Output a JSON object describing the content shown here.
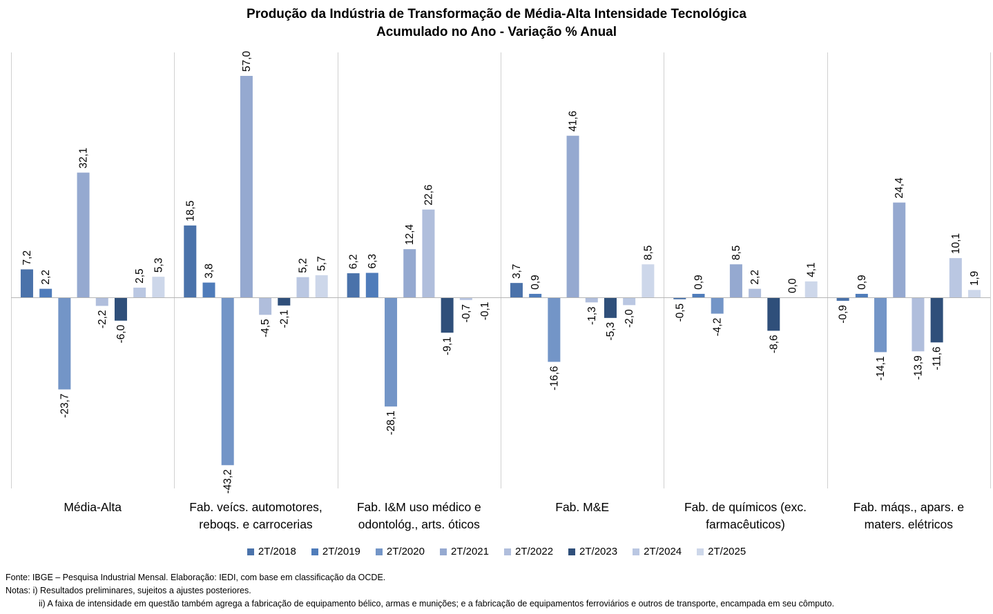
{
  "chart_data": {
    "type": "bar",
    "title": "Produção da Indústria de Transformação de Média-Alta Intensidade Tecnológica",
    "subtitle": "Acumulado no Ano - Variação % Anual",
    "categories": [
      [
        "Média-Alta"
      ],
      [
        "Fab. veícs. automotores,",
        "reboqs. e carrocerias"
      ],
      [
        "Fab. I&M uso médico e",
        "odontológ., arts. óticos"
      ],
      [
        "Fab. M&E"
      ],
      [
        "Fab. de químicos (exc.",
        "farmacêuticos)"
      ],
      [
        "Fab. máqs., apars. e",
        "maters. elétricos"
      ]
    ],
    "series": [
      {
        "name": "2T/2018",
        "color": "#4a72aa",
        "values": [
          7.2,
          18.5,
          6.2,
          3.7,
          -0.5,
          -0.9
        ]
      },
      {
        "name": "2T/2019",
        "color": "#4f7cba",
        "values": [
          2.2,
          3.8,
          6.3,
          0.9,
          0.9,
          0.9
        ]
      },
      {
        "name": "2T/2020",
        "color": "#7395c7",
        "values": [
          -23.7,
          -43.2,
          -28.1,
          -16.6,
          -4.2,
          -14.1
        ]
      },
      {
        "name": "2T/2021",
        "color": "#95a9d0",
        "values": [
          32.1,
          57.0,
          12.4,
          41.6,
          8.5,
          24.4
        ]
      },
      {
        "name": "2T/2022",
        "color": "#b0bedc",
        "values": [
          -2.2,
          -4.5,
          22.6,
          -1.3,
          2.2,
          -13.9
        ]
      },
      {
        "name": "2T/2023",
        "color": "#2f4f7a",
        "values": [
          -6.0,
          -2.1,
          -9.1,
          -5.3,
          -8.6,
          -11.6
        ]
      },
      {
        "name": "2T/2024",
        "color": "#bac7e2",
        "values": [
          2.5,
          5.2,
          -0.7,
          -2.0,
          0.0,
          10.1
        ]
      },
      {
        "name": "2T/2025",
        "color": "#cdd7ea",
        "values": [
          5.3,
          5.7,
          -0.1,
          8.5,
          4.1,
          1.9
        ]
      }
    ],
    "ylim": [
      -49,
      57
    ],
    "decimal_separator": ","
  },
  "notes": {
    "source": "Fonte: IBGE – Pesquisa Industrial Mensal. Elaboração: IEDI, com base em classificação da OCDE.",
    "note1": "Notas: i) Resultados preliminares, sujeitos a ajustes posteriores.",
    "note2": "ii) A faixa de intensidade em questão também agrega a fabricação de equipamento bélico, armas e munições; e a fabricação de equipamentos ferroviários e outros de transporte, encampada em seu cômputo."
  }
}
